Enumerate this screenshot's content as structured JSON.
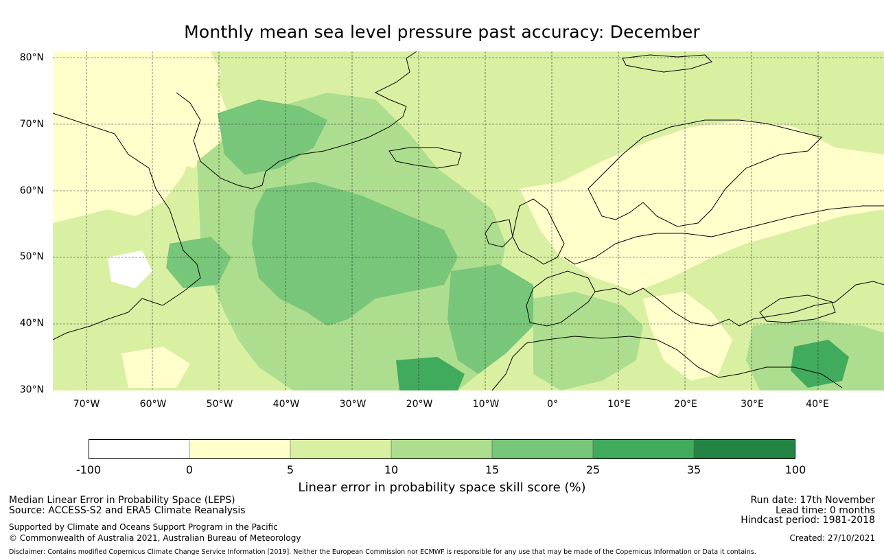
{
  "title": "Monthly mean sea level pressure past accuracy: December",
  "map": {
    "lat_labels": [
      "80°N",
      "70°N",
      "60°N",
      "50°N",
      "40°N",
      "30°N"
    ],
    "lon_labels": [
      "70°W",
      "60°W",
      "50°W",
      "40°W",
      "30°W",
      "20°W",
      "10°W",
      "0°",
      "10°E",
      "20°E",
      "30°E",
      "40°E"
    ],
    "extent": {
      "lon_min": -75,
      "lon_max": 50,
      "lat_min": 30,
      "lat_max": 81
    },
    "colors": {
      "land_line": "#000000",
      "grid_line": "#333333"
    }
  },
  "legend": {
    "ticks": [
      "-100",
      "0",
      "5",
      "10",
      "15",
      "25",
      "35",
      "100"
    ],
    "colors": [
      "#ffffff",
      "#ffffcc",
      "#d9f0a3",
      "#addd8e",
      "#78c679",
      "#41ab5d",
      "#238443"
    ],
    "label": "Linear error in probability space skill score (%)"
  },
  "footer": {
    "left_line1": "Median Linear Error in Probability Space (LEPS)",
    "left_line2": "Source: ACCESS-S2 and ERA5 Climate Reanalysis",
    "left_line3": "Supported by Climate and Oceans Support Program in the Pacific",
    "left_line4": "© Commonwealth of Australia 2021, Australian Bureau of Meteorology",
    "right_line1": "Run date: 17th November",
    "right_line2": "Lead time: 0 months",
    "right_line3": "Hindcast period: 1981-2018",
    "right_line4": "Created: 27/10/2021",
    "disclaimer": "Disclaimer: Contains modified Copernicus Climate Change Service Information [2019]. Neither the European Commission nor ECMWF is responsible for any use that may be made of the Copernicus Information or Data it contains."
  }
}
